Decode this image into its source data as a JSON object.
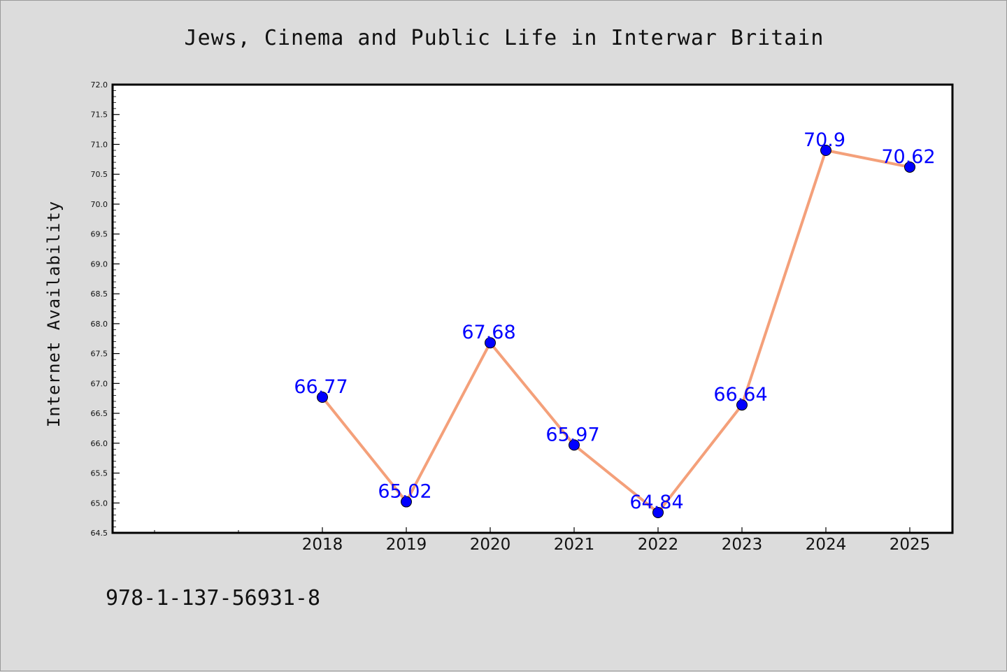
{
  "footer_text": "978-1-137-56931-8",
  "chart_data": {
    "type": "line",
    "title": "Jews, Cinema and Public Life in Interwar Britain",
    "xlabel": "",
    "ylabel": "Internet Availability",
    "x": [
      "2018",
      "2019",
      "2020",
      "2021",
      "2022",
      "2023",
      "2024",
      "2025"
    ],
    "series": [
      {
        "values": [
          66.77,
          65.02,
          67.68,
          65.97,
          64.84,
          66.64,
          70.9,
          70.62
        ],
        "line_color": "#f4a07a",
        "marker_color": "#0000ff",
        "label_color": "#0000ff"
      }
    ],
    "data_labels": [
      "66.77",
      "65.02",
      "67.68",
      "65.97",
      "64.84",
      "66.64",
      "70.9",
      "70.62"
    ],
    "x_tick_labels": [
      "2018",
      "2019",
      "2020",
      "2021",
      "2022",
      "2023",
      "2024",
      "2025"
    ],
    "y_tick_labels": [
      "64.5",
      "65.0",
      "65.5",
      "66.0",
      "66.5",
      "67.0",
      "67.5",
      "68.0",
      "68.5",
      "69.0",
      "69.5",
      "70.0",
      "70.5",
      "71.0",
      "71.5",
      "72.0"
    ],
    "ylim": [
      64.5,
      72.0
    ],
    "grid": false,
    "legend": "none"
  }
}
